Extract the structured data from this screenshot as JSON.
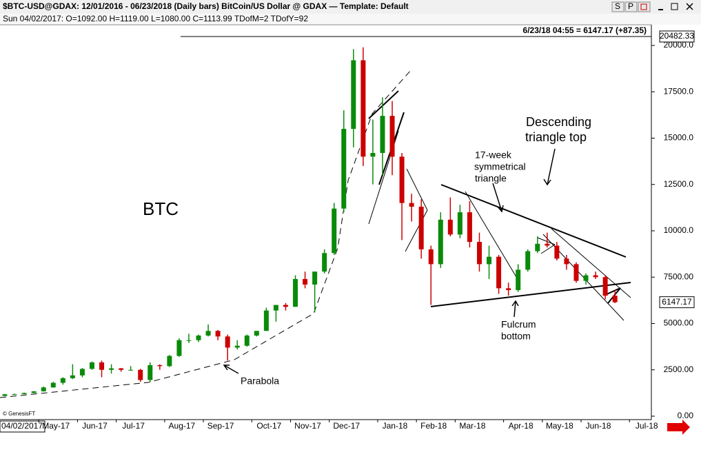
{
  "window": {
    "title": "$BTC-USD@GDAX:  12/01/2016 - 06/23/2018  (Daily bars)   BitCoin/US Dollar @ GDAX  —  Template: Default",
    "buttons": [
      "S",
      "P"
    ],
    "info": "Sun  04/02/2017:  O=1092.00  H=1119.00  L=1080.00  C=1113.99  TDofM=2  TDofY=92",
    "last_quote": "6/23/18 04:55 = 6147.17 (+87.35)",
    "cursor_date": "04/02/2017",
    "credit": "© GenesisFT"
  },
  "chart_data": {
    "type": "candlestick",
    "categories": [
      null,
      null,
      null,
      null,
      "May-17",
      null,
      null,
      null,
      "Jun-17",
      null,
      null,
      null,
      "Jul-17",
      null,
      null,
      null,
      null,
      "Aug-17",
      null,
      null,
      null,
      "Sep-17",
      null,
      null,
      null,
      null,
      "Oct-17",
      null,
      null,
      null,
      "Nov-17",
      null,
      null,
      null,
      "Dec-17",
      null,
      null,
      null,
      null,
      "Jan-18",
      null,
      null,
      null,
      "Feb-18",
      null,
      null,
      null,
      "Mar-18",
      null,
      null,
      null,
      null,
      "Apr-18",
      null,
      null,
      null,
      "May-18",
      null,
      null,
      null,
      "Jun-18",
      null,
      null,
      null,
      null,
      "Jul-18"
    ],
    "open": [
      1092,
      1180,
      1190,
      1250,
      1340,
      1550,
      1800,
      2050,
      2200,
      2550,
      2900,
      2500,
      2580,
      2500,
      2500,
      1950,
      2750,
      2700,
      3250,
      4100,
      4100,
      4350,
      4600,
      4300,
      3700,
      3800,
      4350,
      4600,
      5700,
      6000,
      5900,
      7400,
      7100,
      7800,
      8800,
      11200,
      15500,
      19200,
      14000,
      14200,
      16200,
      14000,
      11500,
      11300,
      9000,
      8200,
      10600,
      9800,
      11000,
      9400,
      8200,
      8600,
      6900,
      6800,
      7900,
      8900,
      9300,
      9200,
      8500,
      8200,
      7300,
      7600,
      7500,
      6500,
      null,
      null
    ],
    "high": [
      1200,
      1220,
      1270,
      1350,
      1600,
      1850,
      2100,
      2800,
      2600,
      2950,
      3000,
      2800,
      2600,
      2700,
      2550,
      2900,
      2800,
      3300,
      4200,
      4450,
      4400,
      4950,
      4650,
      4400,
      4100,
      4400,
      4600,
      5850,
      6000,
      6100,
      7600,
      7800,
      7800,
      9000,
      11500,
      16500,
      19800,
      19900,
      16000,
      17200,
      17000,
      14200,
      12000,
      11700,
      9200,
      11000,
      11800,
      11400,
      11600,
      9900,
      9200,
      8700,
      7200,
      8200,
      9000,
      9700,
      9900,
      9400,
      8700,
      8300,
      7700,
      7800,
      7600,
      6800,
      null,
      null
    ],
    "low": [
      1080,
      1150,
      1180,
      1240,
      1330,
      1540,
      1700,
      2000,
      2100,
      2500,
      2100,
      2300,
      2400,
      2450,
      1850,
      1850,
      2500,
      2650,
      3200,
      3950,
      4000,
      4300,
      4100,
      3000,
      3600,
      3750,
      4300,
      4600,
      5100,
      5700,
      5900,
      6900,
      5600,
      7700,
      8700,
      11000,
      14500,
      13500,
      12500,
      13000,
      13000,
      9500,
      10500,
      8500,
      6000,
      8000,
      9700,
      9600,
      9100,
      7800,
      7400,
      6600,
      6500,
      6700,
      7800,
      8800,
      9100,
      8400,
      7900,
      7200,
      7100,
      7400,
      6300,
      6100,
      null,
      null
    ],
    "close": [
      1180,
      1190,
      1250,
      1340,
      1550,
      1800,
      2050,
      2200,
      2550,
      2900,
      2500,
      2580,
      2500,
      2500,
      1950,
      2750,
      2700,
      3250,
      4100,
      4100,
      4350,
      4600,
      4300,
      3700,
      3800,
      4350,
      4600,
      5700,
      6000,
      5900,
      7400,
      7100,
      7800,
      8800,
      11200,
      15500,
      19200,
      14000,
      14200,
      16200,
      14000,
      11500,
      11300,
      9000,
      8200,
      10600,
      9800,
      11000,
      9400,
      8200,
      8600,
      6900,
      6800,
      7900,
      8900,
      9300,
      9200,
      8500,
      8200,
      7300,
      7600,
      7500,
      6500,
      6147.17,
      null,
      null
    ],
    "up_color": "#0a8a0a",
    "down_color": "#cc0000",
    "ylim": [
      0,
      20500
    ],
    "yticks": [
      {
        "value": 0,
        "label": "0.00"
      },
      {
        "value": 2500,
        "label": "2500.00"
      },
      {
        "value": 5000,
        "label": "5000.00"
      },
      {
        "value": 7500,
        "label": "7500.00"
      },
      {
        "value": 10000,
        "label": "10000.0"
      },
      {
        "value": 12500,
        "label": "12500.0"
      },
      {
        "value": 15000,
        "label": "15000.0"
      },
      {
        "value": 17500,
        "label": "17500.0"
      },
      {
        "value": 20000,
        "label": "20000.0"
      }
    ],
    "high_marker": {
      "value": 20482.33,
      "label": "20482.33"
    },
    "last_price": {
      "value": 6147.17,
      "label": "6147.17"
    },
    "annotations": {
      "symbol": "BTC",
      "parabola": "Parabola",
      "symmetrical": [
        "17-week",
        "symmetrical",
        "triangle"
      ],
      "fulcrum": [
        "Fulcrum",
        "bottom"
      ],
      "descending": [
        "Descending",
        "triangle top"
      ]
    }
  }
}
